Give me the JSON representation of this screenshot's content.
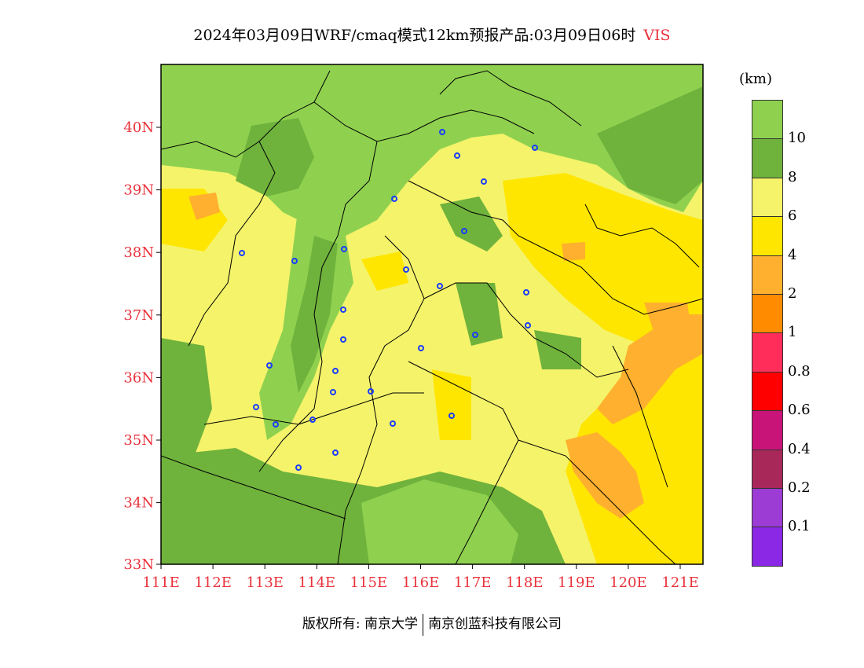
{
  "title": {
    "main": "2024年03月09日WRF/cmaq模式12km预报产品:03月09日06时",
    "variable": "VIS"
  },
  "colors": {
    "accent_red": "#e8323c",
    "boundary": "#000000",
    "station_marker": "#1a3cff"
  },
  "axes": {
    "x_ticks": [
      "111E",
      "112E",
      "113E",
      "114E",
      "115E",
      "116E",
      "117E",
      "118E",
      "119E",
      "120E",
      "121E"
    ],
    "y_ticks": [
      "40N",
      "39N",
      "38N",
      "37N",
      "36N",
      "35N",
      "34N",
      "33N"
    ]
  },
  "colorbar": {
    "unit": "(km)",
    "levels": [
      {
        "label": "10",
        "color": "#8fd14f"
      },
      {
        "label": "8",
        "color": "#6fb23c"
      },
      {
        "label": "6",
        "color": "#f4f36a"
      },
      {
        "label": "4",
        "color": "#ffe600"
      },
      {
        "label": "2",
        "color": "#ffb02e"
      },
      {
        "label": "1",
        "color": "#ff8c00"
      },
      {
        "label": "0.8",
        "color": "#ff2d5a"
      },
      {
        "label": "0.6",
        "color": "#ff0000"
      },
      {
        "label": "0.4",
        "color": "#c81478"
      },
      {
        "label": "0.2",
        "color": "#a8285a"
      },
      {
        "label": "0.1",
        "color": "#9c3cd4"
      },
      {
        "label": "",
        "color": "#8a28e6"
      }
    ]
  },
  "footer": {
    "left": "版权所有: 南京大学",
    "right": "南京创蓝科技有限公司"
  }
}
